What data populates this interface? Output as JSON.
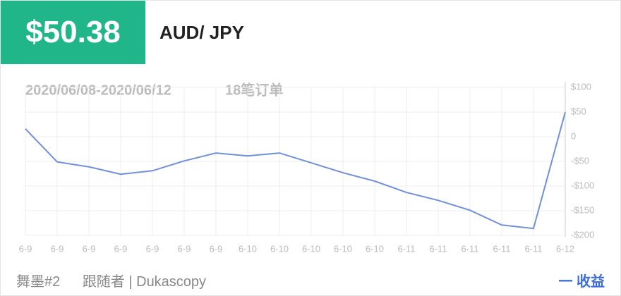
{
  "header": {
    "price": "$50.38",
    "pair": "AUD/ JPY"
  },
  "chart_data": {
    "type": "line",
    "date_range": "2020/06/08-2020/06/12",
    "orders": "18笔订单",
    "categories": [
      "6-9",
      "6-9",
      "6-9",
      "6-9",
      "6-9",
      "6-9",
      "6-9",
      "6-10",
      "6-10",
      "6-10",
      "6-10",
      "6-10",
      "6-11",
      "6-11",
      "6-11",
      "6-11",
      "6-11",
      "6-12"
    ],
    "series": [
      {
        "color": "#7090dc",
        "values": [
          16,
          -51,
          -61,
          -76,
          -69,
          -49,
          -33,
          -39,
          -33,
          -53,
          -73,
          -90,
          -113,
          -129,
          -149,
          -179,
          -186,
          50
        ]
      }
    ],
    "ylim": [
      -200,
      100
    ],
    "yticks": [
      {
        "value": 100,
        "label": "$100"
      },
      {
        "value": 50,
        "label": "$50"
      },
      0,
      {
        "value": -50,
        "label": "-$50"
      },
      {
        "value": -100,
        "label": "-$100"
      },
      {
        "value": -150,
        "label": "-$150"
      },
      {
        "value": -200,
        "label": "-$200"
      }
    ],
    "grid": true
  },
  "footer": {
    "account": "舞墨#2",
    "follower": "跟随者 | Dukascopy",
    "link": "一 收益"
  }
}
